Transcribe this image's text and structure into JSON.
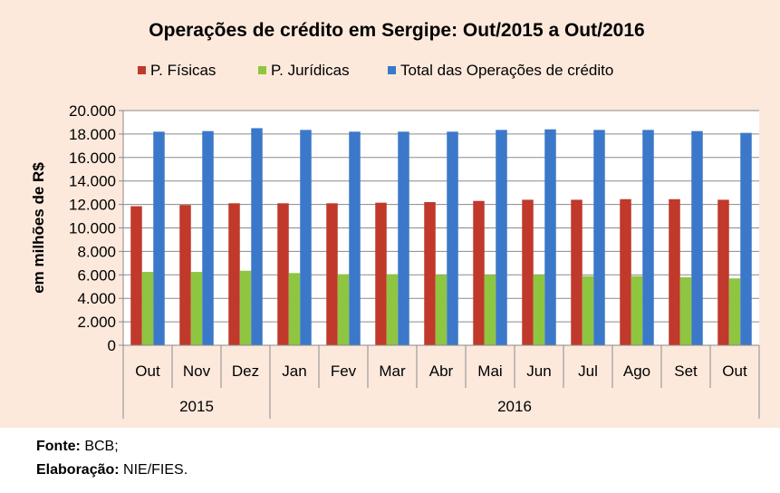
{
  "colors": {
    "background": "#fce9dc",
    "plot_background": "#ffffff",
    "pf": "#c0392b",
    "pj": "#8ec641",
    "total": "#3b78c9"
  },
  "chart_data": {
    "type": "bar",
    "title": "Operações de crédito em Sergipe:  Out/2015 a Out/2016",
    "ylabel": "em milhões de R$",
    "xlabel": "",
    "ylim": [
      0,
      20000
    ],
    "yticks": [
      "0",
      "2.000",
      "4.000",
      "6.000",
      "8.000",
      "10.000",
      "12.000",
      "14.000",
      "16.000",
      "18.000",
      "20.000"
    ],
    "grid": true,
    "legend_position": "top",
    "categories": [
      "Out",
      "Nov",
      "Dez",
      "Jan",
      "Fev",
      "Mar",
      "Abr",
      "Mai",
      "Jun",
      "Jul",
      "Ago",
      "Set",
      "Out"
    ],
    "year_groups": [
      {
        "label": "2015",
        "count": 3
      },
      {
        "label": "2016",
        "count": 10
      }
    ],
    "series": [
      {
        "name": "P. Físicas",
        "values": [
          11850,
          11950,
          12100,
          12100,
          12100,
          12150,
          12200,
          12300,
          12400,
          12400,
          12450,
          12450,
          12400
        ]
      },
      {
        "name": "P. Jurídicas",
        "values": [
          6250,
          6250,
          6350,
          6150,
          6050,
          6050,
          6000,
          6000,
          6000,
          5900,
          5900,
          5800,
          5700
        ]
      },
      {
        "name": "Total das Operações de crédito",
        "values": [
          18200,
          18250,
          18500,
          18350,
          18200,
          18200,
          18200,
          18350,
          18400,
          18350,
          18350,
          18250,
          18100
        ]
      }
    ]
  },
  "source": {
    "fonte_label": "Fonte:",
    "fonte_value": " BCB;",
    "elab_label": "Elaboração:",
    "elab_value": " NIE/FIES."
  }
}
